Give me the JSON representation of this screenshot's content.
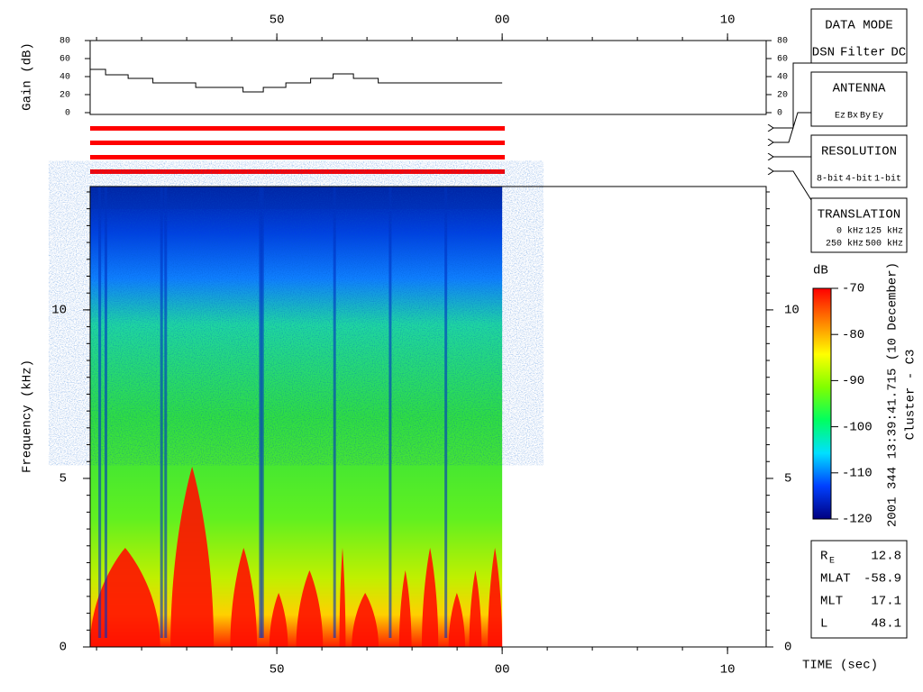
{
  "chart_data": [
    {
      "type": "line",
      "step": true,
      "axis_label": "Gain (dB)",
      "color": "#000000",
      "x": [
        41.715,
        42.4,
        43.4,
        44.5,
        46.4,
        48.5,
        49.4,
        50.4,
        51.5,
        52.5,
        53.4,
        54.5,
        60
      ],
      "values": [
        48,
        42,
        38,
        33,
        28,
        23,
        28,
        33,
        38,
        43,
        38,
        33,
        33
      ],
      "xlim": [
        41.715,
        71.715
      ],
      "xticks": [
        {
          "value": 50,
          "label": "50"
        },
        {
          "value": 60,
          "label": "00"
        },
        {
          "value": 70,
          "label": "10"
        }
      ],
      "ylim": [
        0,
        80
      ],
      "yticks": [
        0,
        20,
        40,
        60,
        80
      ]
    },
    {
      "type": "spectrogram",
      "axis_label": "Frequency (kHz)",
      "x_label": "TIME (sec)",
      "time_range": [
        41.715,
        60
      ],
      "xlim": [
        41.715,
        71.715
      ],
      "xticks": [
        {
          "value": 50,
          "label": "50"
        },
        {
          "value": 60,
          "label": "00"
        },
        {
          "value": 70,
          "label": "10"
        }
      ],
      "ylim": [
        0,
        13.66
      ],
      "yticks": [
        0,
        5,
        10
      ],
      "colorbar": {
        "label": "dB",
        "lim": [
          -120,
          -70
        ],
        "ticks": [
          -70,
          -80,
          -90,
          -100,
          -110,
          -120
        ],
        "colors": [
          "#000080",
          "#0040ff",
          "#00e0ff",
          "#00ff60",
          "#80ff00",
          "#ffff00",
          "#ff8000",
          "#ff0000"
        ]
      }
    }
  ],
  "header": {
    "date": "2001 344 13:39:41.715 (10 December)",
    "spacecraft": "Cluster - C3"
  },
  "panels": [
    {
      "title": "DATA MODE",
      "items": [
        {
          "text": "DSN",
          "color": "#ff0000"
        },
        {
          "text": "Filter",
          "color": "#00dd00"
        },
        {
          "text": "DC",
          "color": "#0000ff"
        }
      ]
    },
    {
      "title": "ANTENNA",
      "items": [
        {
          "text": "Ez",
          "color": "#ff0000"
        },
        {
          "text": "Bx",
          "color": "#00dd00"
        },
        {
          "text": "By",
          "color": "#0000ff"
        },
        {
          "text": "Ey",
          "color": "#000000"
        }
      ]
    },
    {
      "title": "RESOLUTION",
      "items": [
        {
          "text": "8-bit",
          "color": "#ff0000"
        },
        {
          "text": "4-bit",
          "color": "#00dd00"
        },
        {
          "text": "1-bit",
          "color": "#0000ff"
        }
      ]
    },
    {
      "title": "TRANSLATION",
      "items": [
        {
          "text": "0 kHz",
          "color": "#ff0000"
        },
        {
          "text": "125 kHz",
          "color": "#00dd00"
        },
        {
          "text": "250 kHz",
          "color": "#0000ff"
        },
        {
          "text": "500 kHz",
          "color": "#000000"
        }
      ]
    }
  ],
  "orbit": {
    "rows": [
      [
        "R",
        "E",
        "12.8"
      ],
      [
        "MLAT",
        "",
        "-58.9"
      ],
      [
        "MLT",
        "",
        "17.1"
      ],
      [
        "L",
        "",
        "48.1"
      ]
    ]
  }
}
